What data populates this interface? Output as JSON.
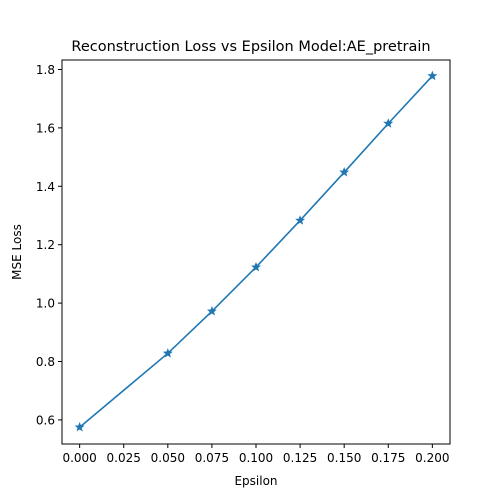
{
  "chart_data": {
    "type": "line",
    "title": "Reconstruction Loss vs Epsilon Model:AE_pretrain",
    "xlabel": "Epsilon",
    "ylabel": "MSE Loss",
    "xlim": [
      -0.01,
      0.21
    ],
    "ylim": [
      0.5175,
      1.8325
    ],
    "xticks": [
      0.0,
      0.025,
      0.05,
      0.075,
      0.1,
      0.125,
      0.15,
      0.175,
      0.2
    ],
    "xtick_labels": [
      "0.000",
      "0.025",
      "0.050",
      "0.075",
      "0.100",
      "0.125",
      "0.150",
      "0.175",
      "0.200"
    ],
    "yticks": [
      0.6,
      0.8,
      1.0,
      1.2,
      1.4,
      1.6,
      1.8
    ],
    "ytick_labels": [
      "0.6",
      "0.8",
      "1.0",
      "1.2",
      "1.4",
      "1.6",
      "1.8"
    ],
    "grid": false,
    "marker": "star",
    "color": "#1f77b4",
    "series": [
      {
        "x": [
          0.0,
          0.05,
          0.075,
          0.1,
          0.125,
          0.15,
          0.175,
          0.2
        ],
        "y": [
          0.575,
          0.828,
          0.972,
          1.123,
          1.283,
          1.448,
          1.615,
          1.778
        ]
      }
    ]
  }
}
